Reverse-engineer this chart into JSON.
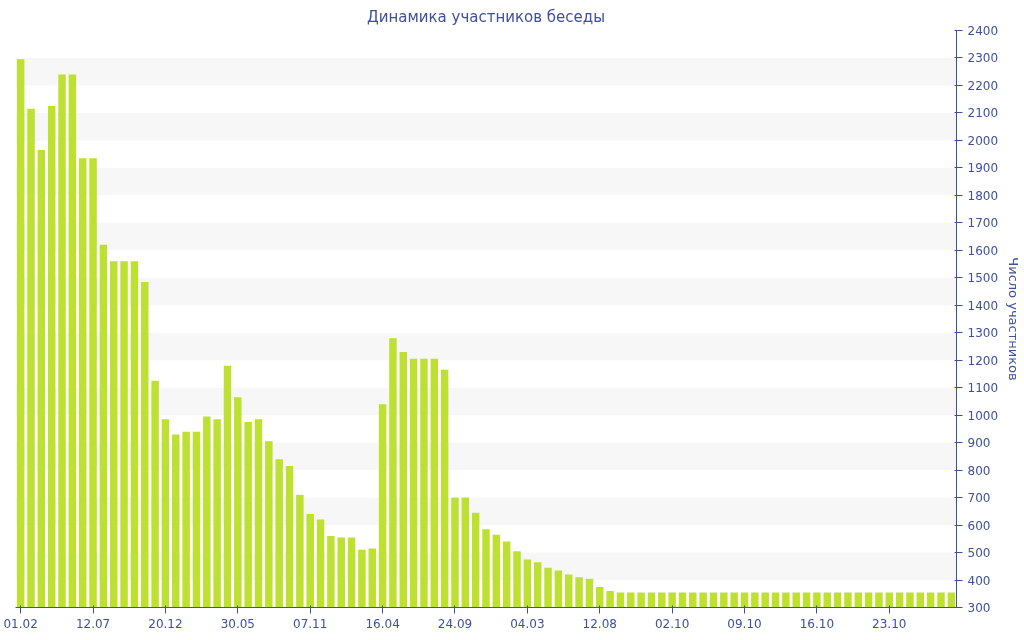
{
  "chart_data": {
    "type": "bar",
    "title": "Динамика участников беседы",
    "ylabel": "Число участников",
    "categories": [
      "01.02",
      null,
      null,
      null,
      null,
      null,
      null,
      "12.07",
      null,
      null,
      null,
      null,
      null,
      null,
      "20.12",
      null,
      null,
      null,
      null,
      null,
      null,
      "30.05",
      null,
      null,
      null,
      null,
      null,
      null,
      "07.11",
      null,
      null,
      null,
      null,
      null,
      null,
      "16.04",
      null,
      null,
      null,
      null,
      null,
      null,
      "24.09",
      null,
      null,
      null,
      null,
      null,
      null,
      "04.03",
      null,
      null,
      null,
      null,
      null,
      null,
      "12.08",
      null,
      null,
      null,
      null,
      null,
      null,
      "02.10",
      null,
      null,
      null,
      null,
      null,
      null,
      "09.10",
      null,
      null,
      null,
      null,
      null,
      null,
      "16.10",
      null,
      null,
      null,
      null,
      null,
      null,
      "23.10",
      null,
      null,
      null,
      null,
      null,
      null
    ],
    "values": [
      2295,
      2115,
      1965,
      2125,
      2240,
      2240,
      1935,
      1935,
      1620,
      1560,
      1560,
      1560,
      1485,
      1125,
      985,
      930,
      940,
      940,
      995,
      985,
      1180,
      1065,
      975,
      985,
      905,
      840,
      815,
      710,
      640,
      620,
      560,
      555,
      555,
      510,
      515,
      1040,
      1280,
      1230,
      1205,
      1205,
      1205,
      1165,
      700,
      700,
      645,
      585,
      565,
      540,
      505,
      475,
      465,
      445,
      435,
      420,
      410,
      405,
      375,
      360,
      355,
      355,
      355,
      355,
      355,
      355,
      355,
      355,
      355,
      355,
      355,
      355,
      355,
      355,
      355,
      355,
      355,
      355,
      355,
      355,
      355,
      355,
      355,
      355,
      355,
      355,
      355,
      355,
      355,
      355,
      355,
      355,
      355
    ],
    "color": "#bde032",
    "ylim": [
      300,
      2400
    ],
    "yticks": [
      300,
      400,
      500,
      600,
      700,
      800,
      900,
      1000,
      1100,
      1200,
      1300,
      1400,
      1500,
      1600,
      1700,
      1800,
      1900,
      2000,
      2100,
      2200,
      2300,
      2400
    ]
  }
}
